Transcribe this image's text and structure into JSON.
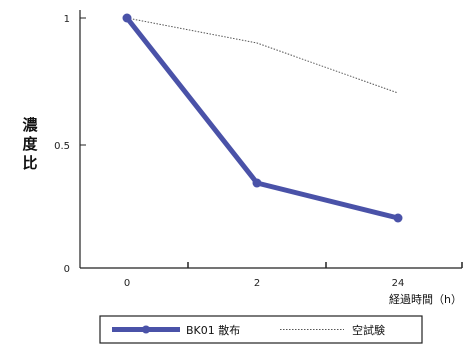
{
  "chart_data": {
    "type": "line",
    "categories": [
      "0",
      "2",
      "24"
    ],
    "series": [
      {
        "name": "BK01 散布",
        "values": [
          1.0,
          0.34,
          0.2
        ],
        "color": "#4a52a8",
        "style": "solid"
      },
      {
        "name": "空試験",
        "values": [
          1.0,
          0.9,
          0.7
        ],
        "color": "#555555",
        "style": "dotted"
      }
    ],
    "yticks": [
      "0",
      "0.5",
      "1"
    ],
    "ylim": [
      0,
      1
    ],
    "ylabel": "濃度比",
    "xlabel": "経過時間（h）",
    "grid": false,
    "legend_position": "bottom"
  }
}
